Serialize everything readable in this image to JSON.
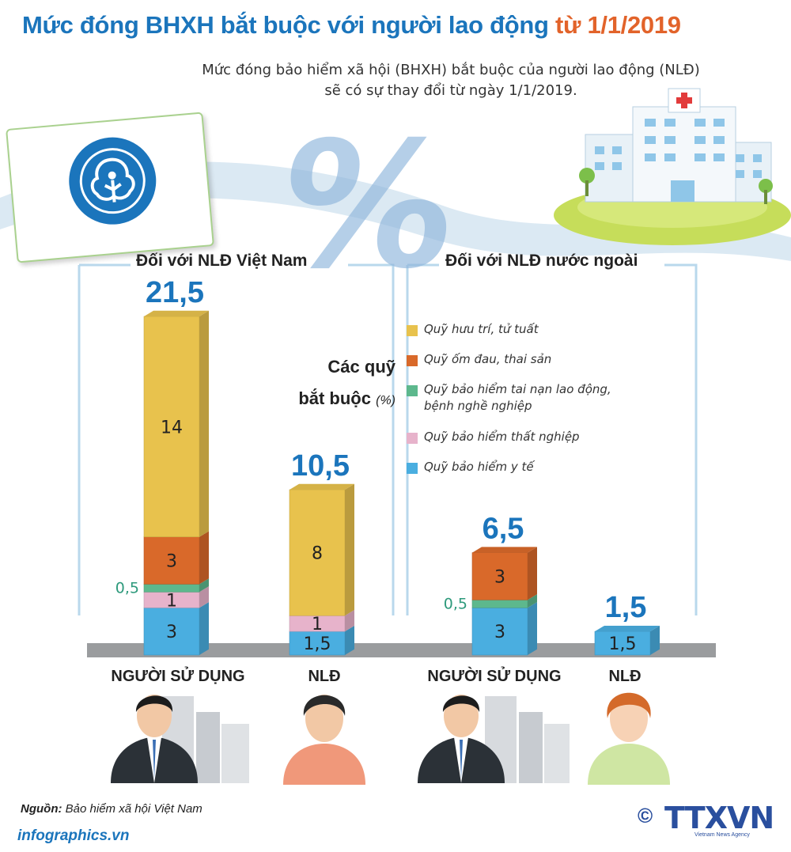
{
  "header": {
    "title_main": "Mức đóng BHXH bắt buộc với người lao động",
    "title_date": "từ 1/1/2019",
    "subtitle_line1": "Mức đóng bảo hiểm xã hội (BHXH) bắt buộc của người lao động (NLĐ)",
    "subtitle_line2": "sẽ có sự thay đổi từ ngày 1/1/2019."
  },
  "decoration": {
    "percent_glyph": "%"
  },
  "sections": {
    "vietnam": "Đối với NLĐ Việt Nam",
    "foreign": "Đối với NLĐ nước ngoài"
  },
  "legend": {
    "title_line1": "Các quỹ",
    "title_line2": "bắt buộc",
    "unit": "(%)",
    "items": [
      {
        "label": "Quỹ hưu trí, tử tuất",
        "color": "#e8c24d"
      },
      {
        "label": "Quỹ ốm đau, thai sản",
        "color": "#d9692a"
      },
      {
        "label": "Quỹ bảo hiểm tai nạn lao động,",
        "label2": "bệnh nghề nghiệp",
        "color": "#5db88d"
      },
      {
        "label": "Quỹ bảo hiểm thất nghiệp",
        "color": "#e7b3cb"
      },
      {
        "label": "Quỹ bảo hiểm y tế",
        "color": "#4aaee0"
      }
    ]
  },
  "chart_data": {
    "type": "bar",
    "stacked": true,
    "categories": [
      "NGƯỜI SỬ DỤNG",
      "NLĐ",
      "NGƯỜI SỬ DỤNG",
      "NLĐ"
    ],
    "groups": [
      "Đối với NLĐ Việt Nam",
      "Đối với NLĐ Việt Nam",
      "Đối với NLĐ nước ngoài",
      "Đối với NLĐ nước ngoài"
    ],
    "totals": [
      21.5,
      10.5,
      6.5,
      1.5
    ],
    "total_labels": [
      "21,5",
      "10,5",
      "6,5",
      "1,5"
    ],
    "series": [
      {
        "name": "Quỹ bảo hiểm y tế",
        "values": [
          3,
          1.5,
          3,
          1.5
        ],
        "labels": [
          "3",
          "1,5",
          "3",
          "1,5"
        ]
      },
      {
        "name": "Quỹ bảo hiểm thất nghiệp",
        "values": [
          1,
          1,
          0,
          0
        ],
        "labels": [
          "1",
          "1",
          "",
          ""
        ]
      },
      {
        "name": "Quỹ bảo hiểm tai nạn lao động, bệnh nghề nghiệp",
        "values": [
          0.5,
          0,
          0.5,
          0
        ],
        "labels": [
          "0,5",
          "",
          "0,5",
          ""
        ]
      },
      {
        "name": "Quỹ ốm đau, thai sản",
        "values": [
          3,
          0,
          3,
          0
        ],
        "labels": [
          "3",
          "",
          "3",
          ""
        ]
      },
      {
        "name": "Quỹ hưu trí, tử tuất",
        "values": [
          14,
          8,
          0,
          0
        ],
        "labels": [
          "14",
          "8",
          "",
          ""
        ]
      }
    ],
    "unit": "%",
    "ylim": [
      0,
      21.5
    ],
    "grid": false,
    "legend_position": "top-right"
  },
  "footer": {
    "source_label": "Nguồn:",
    "source_text": "Bảo hiểm xã hội Việt Nam",
    "website": "infographics.vn",
    "copyright": "©",
    "agency": "TTXVN",
    "agency_sub": "Vietnam News Agency"
  }
}
